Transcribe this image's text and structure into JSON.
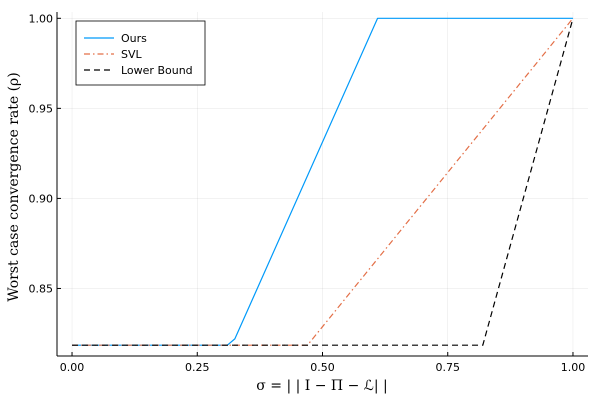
{
  "chart_data": {
    "type": "line",
    "title": "",
    "xlabel": "σ = | | I − Π − ℒ| |",
    "ylabel": "Worst case convergence rate (ρ)",
    "xlim": [
      -0.03,
      1.03
    ],
    "ylim": [
      0.8125,
      1.0035
    ],
    "xticks": [
      0.0,
      0.25,
      0.5,
      0.75,
      1.0
    ],
    "xtick_labels": [
      "0.00",
      "0.25",
      "0.50",
      "0.75",
      "1.00"
    ],
    "yticks": [
      0.85,
      0.9,
      0.95,
      1.0
    ],
    "ytick_labels": [
      "0.85",
      "0.90",
      "0.95",
      "1.00"
    ],
    "grid": true,
    "legend_position": "top-left",
    "series": [
      {
        "name": "Ours",
        "color": "#009AFA",
        "dash": "solid",
        "x": [
          0.0,
          0.31,
          0.325,
          0.61,
          1.0
        ],
        "y": [
          0.8185,
          0.8185,
          0.822,
          1.0,
          1.0
        ]
      },
      {
        "name": "SVL",
        "color": "#E36F47",
        "dash": "dashdot",
        "x": [
          0.0,
          0.47,
          1.0
        ],
        "y": [
          0.8185,
          0.8185,
          1.0
        ]
      },
      {
        "name": "Lower Bound",
        "color": "#000000",
        "dash": "dashed",
        "x": [
          0.0,
          0.82,
          1.0
        ],
        "y": [
          0.8185,
          0.8185,
          1.0
        ]
      }
    ]
  }
}
